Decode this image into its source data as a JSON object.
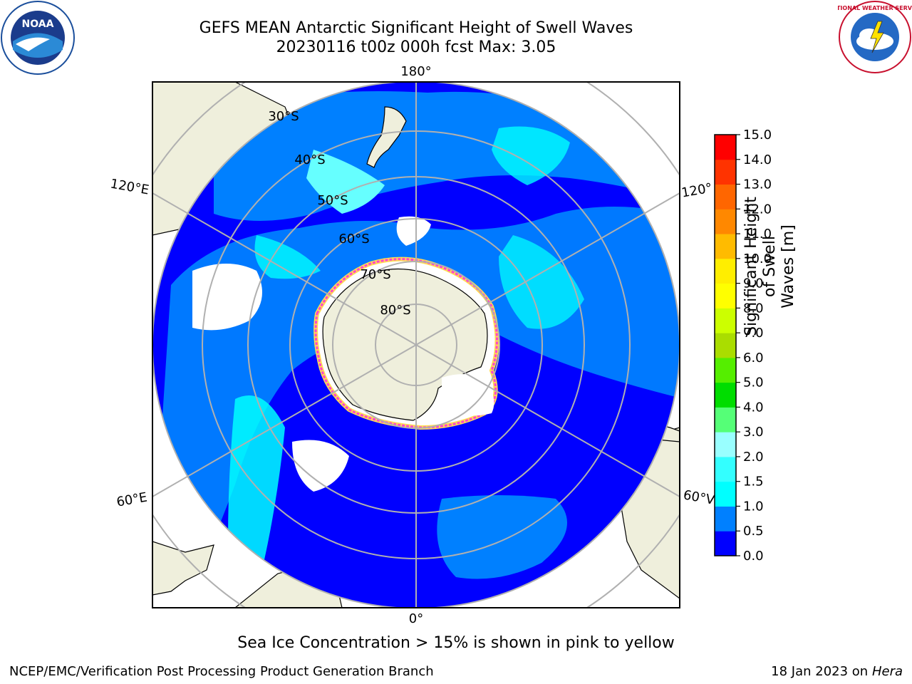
{
  "header": {
    "title_line1": "GEFS MEAN Antarctic Significant Height of Swell Waves",
    "title_line2": "20230116 t00z 000h fcst   Max: 3.05"
  },
  "map": {
    "longitude_labels": {
      "top": "180°",
      "bottom": "0°",
      "left_upper": "120°E",
      "left_lower": "60°E",
      "right_upper": "120°",
      "right_lower": "60°V"
    },
    "latitude_labels": [
      "30°S",
      "40°S",
      "50°S",
      "60°S",
      "70°S",
      "80°S"
    ],
    "colors": {
      "ocean_low": "#0000ff",
      "ocean_mid": "#0080ff",
      "ocean_high": "#00ffff",
      "land": "#efefdc",
      "ice_edge_pink": "#ff44cc",
      "ice_edge_yellow": "#ffdd55",
      "grid": "#b0b0b0"
    }
  },
  "colorbar": {
    "title": "Significant Height of Swell Waves [m]",
    "title_line1": "Significant Height of Swell",
    "title_line2": "Waves [m]",
    "ticks": [
      "0.0",
      "0.5",
      "1.0",
      "1.5",
      "2.0",
      "3.0",
      "4.0",
      "5.0",
      "6.0",
      "7.0",
      "8.0",
      "9.0",
      "10.0",
      "11.0",
      "12.0",
      "13.0",
      "14.0",
      "15.0"
    ],
    "bin_colors": [
      "#0000ff",
      "#0080ff",
      "#00ffff",
      "#33ffff",
      "#99ffff",
      "#55ff77",
      "#00dd00",
      "#55ee00",
      "#aadd00",
      "#ccff00",
      "#ffff00",
      "#ffee00",
      "#ffbb00",
      "#ff8800",
      "#ff6600",
      "#ff3300",
      "#ff0000"
    ]
  },
  "note": "Sea Ice Concentration > 15% is shown in pink to yellow",
  "footer": {
    "left": "NCEP/EMC/Verification Post Processing Product Generation Branch",
    "right_date": "18 Jan 2023 on",
    "right_machine": "Hera"
  },
  "logos": {
    "noaa_text": "NOAA",
    "nws_text": "NATIONAL WEATHER SERVICE"
  }
}
